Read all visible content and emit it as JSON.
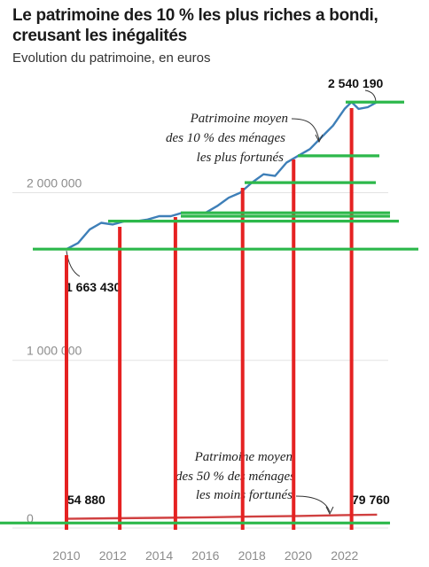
{
  "title": "Le patrimoine des 10 % les plus riches a bondi, creusant les inégalités",
  "subtitle": "Evolution du patrimoine, en euros",
  "colors": {
    "top10_line": "#3e7fb8",
    "bottom50_line": "#d04040",
    "grid": "#e3e3e3",
    "overlay_red": "#e52222",
    "overlay_green": "#2db84b"
  },
  "chart_data": {
    "type": "line",
    "x_ticks": [
      "2010",
      "2012",
      "2014",
      "2016",
      "2018",
      "2020",
      "2022"
    ],
    "y_ticks": [
      {
        "value": 0,
        "label": "0"
      },
      {
        "value": 1000000,
        "label": "1 000 000"
      },
      {
        "value": 2000000,
        "label": "2 000 000"
      }
    ],
    "ylim": [
      0,
      2700000
    ],
    "xlim": [
      2010,
      2023.5
    ],
    "series": [
      {
        "name": "Patrimoine moyen des 10 % des ménages les plus fortunés",
        "x": [
          2010,
          2010.5,
          2011,
          2011.5,
          2012,
          2012.5,
          2013,
          2013.5,
          2014,
          2014.5,
          2015,
          2015.5,
          2016,
          2016.5,
          2017,
          2017.5,
          2018,
          2018.5,
          2019,
          2019.5,
          2020,
          2020.5,
          2021,
          2021.5,
          2022,
          2022.3,
          2022.6,
          2023,
          2023.4
        ],
        "values": [
          1663430,
          1700000,
          1780000,
          1820000,
          1810000,
          1830000,
          1830000,
          1840000,
          1860000,
          1860000,
          1880000,
          1880000,
          1880000,
          1920000,
          1970000,
          2000000,
          2060000,
          2110000,
          2100000,
          2180000,
          2220000,
          2260000,
          2330000,
          2400000,
          2500000,
          2540190,
          2500000,
          2510000,
          2540190
        ]
      },
      {
        "name": "Patrimoine moyen des 50 % des ménages les moins fortunés",
        "x": [
          2010,
          2012,
          2014,
          2016,
          2018,
          2020,
          2022,
          2023.4
        ],
        "values": [
          54880,
          58000,
          61000,
          64000,
          68000,
          72000,
          77000,
          79760
        ]
      }
    ],
    "data_labels": [
      {
        "text": "2 540 190",
        "x": 2023.1,
        "y": 2540190
      },
      {
        "text": "1 663 430",
        "x": 2010,
        "y": 1663430
      },
      {
        "text": "54 880",
        "x": 2010,
        "y": 54880
      },
      {
        "text": "79 760",
        "x": 2023.4,
        "y": 79760
      }
    ],
    "annotations": [
      {
        "lines": [
          "Patrimoine moyen",
          "des 10 % des ménages",
          "les plus fortunés"
        ]
      },
      {
        "lines": [
          "Patrimoine moyen",
          "des 50 % des ménages",
          "les moins fortunés"
        ]
      }
    ],
    "overlay": {
      "vertical_x": [
        2010,
        2012.3,
        2014.7,
        2017.6,
        2019.8,
        2022.3
      ],
      "horizontal_y": [
        1663430,
        1830000,
        1860000,
        1880000,
        2060000,
        2220000,
        2540190,
        30000
      ]
    }
  }
}
